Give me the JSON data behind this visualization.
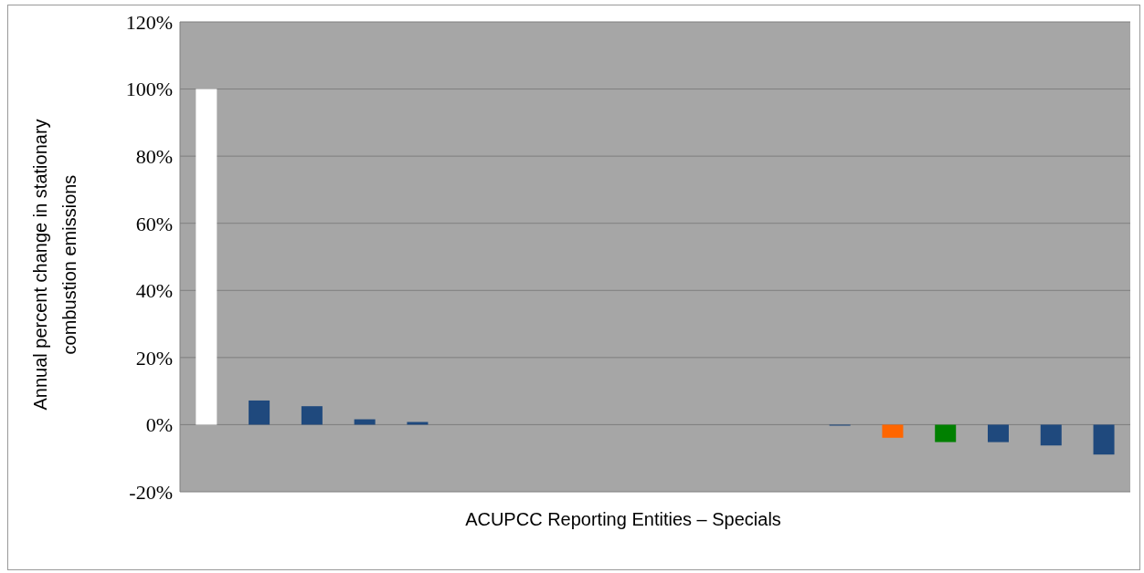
{
  "chart_data": {
    "type": "bar",
    "xlabel": "ACUPCC Reporting Entities – Specials",
    "ylabel": "Annual percent change in stationary combustion emissions",
    "categories": [
      null,
      null,
      null,
      null,
      null,
      null,
      null,
      null,
      null,
      null,
      null,
      null,
      null,
      null,
      null,
      null,
      null,
      null
    ],
    "values": [
      100,
      7.2,
      5.5,
      1.6,
      0.8,
      0,
      0,
      0,
      0,
      0,
      0,
      0,
      -0.3,
      -3.9,
      -5.2,
      -5.2,
      -6.2,
      -8.9
    ],
    "colors": [
      "#ffffff",
      "#1f497d",
      "#1f497d",
      "#1f497d",
      "#1f497d",
      "#1f497d",
      "#1f497d",
      "#1f497d",
      "#1f497d",
      "#1f497d",
      "#1f497d",
      "#1f497d",
      "#1f497d",
      "#ff6600",
      "#008000",
      "#1f497d",
      "#1f497d",
      "#1f497d"
    ],
    "ylim": [
      -20,
      120
    ],
    "yticks": [
      {
        "value": -20,
        "label": "-20%"
      },
      {
        "value": 0,
        "label": "0%"
      },
      {
        "value": 20,
        "label": "20%"
      },
      {
        "value": 40,
        "label": "40%"
      },
      {
        "value": 60,
        "label": "60%"
      },
      {
        "value": 80,
        "label": "80%"
      },
      {
        "value": 100,
        "label": "100%"
      },
      {
        "value": 120,
        "label": "120%"
      }
    ],
    "grid": "y",
    "legend": false
  }
}
